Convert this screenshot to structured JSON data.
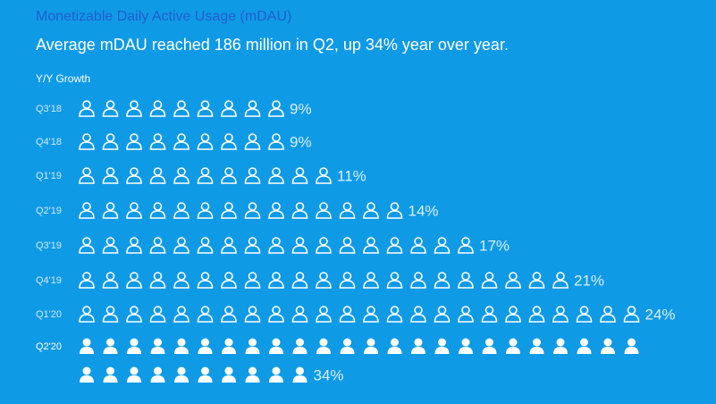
{
  "chart_data": {
    "type": "pictograph",
    "title": "Monetizable Daily Active Usage (mDAU)",
    "subtitle": "Average mDAU reached 186 million in Q2, up 34% year over year.",
    "y_label": "Y/Y Growth",
    "categories": [
      "Q3'18",
      "Q4'18",
      "Q1'19",
      "Q2'19",
      "Q3'19",
      "Q4'19",
      "Q1'20",
      "Q2'20"
    ],
    "values": [
      9,
      9,
      11,
      14,
      17,
      21,
      24,
      34
    ],
    "value_labels": [
      "9%",
      "9%",
      "11%",
      "14%",
      "17%",
      "21%",
      "24%",
      "34%"
    ],
    "color": "#ffffff"
  }
}
